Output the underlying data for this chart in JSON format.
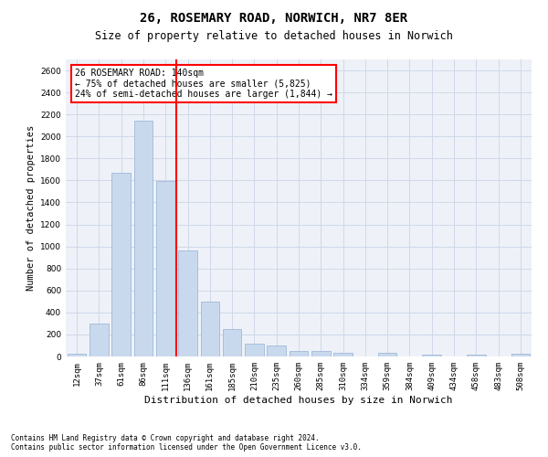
{
  "title": "26, ROSEMARY ROAD, NORWICH, NR7 8ER",
  "subtitle": "Size of property relative to detached houses in Norwich",
  "xlabel": "Distribution of detached houses by size in Norwich",
  "ylabel": "Number of detached properties",
  "footnote1": "Contains HM Land Registry data © Crown copyright and database right 2024.",
  "footnote2": "Contains public sector information licensed under the Open Government Licence v3.0.",
  "annotation_title": "26 ROSEMARY ROAD: 140sqm",
  "annotation_line1": "← 75% of detached houses are smaller (5,825)",
  "annotation_line2": "24% of semi-detached houses are larger (1,844) →",
  "bar_categories": [
    "12sqm",
    "37sqm",
    "61sqm",
    "86sqm",
    "111sqm",
    "136sqm",
    "161sqm",
    "185sqm",
    "210sqm",
    "235sqm",
    "260sqm",
    "285sqm",
    "310sqm",
    "334sqm",
    "359sqm",
    "384sqm",
    "409sqm",
    "434sqm",
    "458sqm",
    "483sqm",
    "508sqm"
  ],
  "bar_values": [
    25,
    300,
    1670,
    2140,
    1595,
    960,
    500,
    250,
    120,
    100,
    50,
    50,
    35,
    0,
    35,
    0,
    20,
    0,
    20,
    0,
    25
  ],
  "bar_color": "#c9d9ed",
  "bar_edgecolor": "#a0b8d8",
  "vline_index": 5,
  "vline_color": "red",
  "annotation_box_color": "white",
  "annotation_box_edgecolor": "red",
  "ylim": [
    0,
    2700
  ],
  "yticks": [
    0,
    200,
    400,
    600,
    800,
    1000,
    1200,
    1400,
    1600,
    1800,
    2000,
    2200,
    2400,
    2600
  ],
  "grid_color": "#d0d8e8",
  "bg_color": "#eef2f8",
  "title_fontsize": 10,
  "subtitle_fontsize": 8.5,
  "ylabel_fontsize": 7.5,
  "xlabel_fontsize": 8,
  "tick_fontsize": 6.5,
  "ann_fontsize": 7,
  "footnote_fontsize": 5.5
}
